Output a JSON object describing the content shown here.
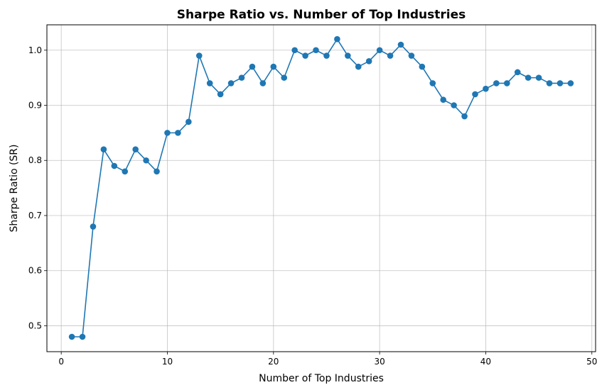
{
  "chart_data": {
    "type": "line",
    "title": "Sharpe Ratio vs. Number of Top Industries",
    "xlabel": "Number of Top Industries",
    "ylabel": "Sharpe Ratio (SR)",
    "xlim": [
      -1.35,
      50.35
    ],
    "ylim": [
      0.453,
      1.046
    ],
    "xticks": [
      0,
      10,
      20,
      30,
      40,
      50
    ],
    "yticks": [
      0.5,
      0.6,
      0.7,
      0.8,
      0.9,
      1.0
    ],
    "xtick_labels": [
      "0",
      "10",
      "20",
      "30",
      "40",
      "50"
    ],
    "ytick_labels": [
      "0.5",
      "0.6",
      "0.7",
      "0.8",
      "0.9",
      "1.0"
    ],
    "grid": true,
    "color": "#1f77b4",
    "marker": "circle",
    "x": [
      1,
      2,
      3,
      4,
      5,
      6,
      7,
      8,
      9,
      10,
      11,
      12,
      13,
      14,
      15,
      16,
      17,
      18,
      19,
      20,
      21,
      22,
      23,
      24,
      25,
      26,
      27,
      28,
      29,
      30,
      31,
      32,
      33,
      34,
      35,
      36,
      37,
      38,
      39,
      40,
      41,
      42,
      43,
      44,
      45,
      46,
      47,
      48
    ],
    "y": [
      0.48,
      0.48,
      0.68,
      0.82,
      0.79,
      0.78,
      0.82,
      0.8,
      0.78,
      0.85,
      0.85,
      0.87,
      0.99,
      0.94,
      0.92,
      0.94,
      0.95,
      0.97,
      0.94,
      0.97,
      0.95,
      1.0,
      0.99,
      1.0,
      0.99,
      1.02,
      0.99,
      0.97,
      0.98,
      1.0,
      0.99,
      1.01,
      0.99,
      0.97,
      0.94,
      0.91,
      0.9,
      0.88,
      0.92,
      0.93,
      0.94,
      0.94,
      0.96,
      0.95,
      0.95,
      0.94,
      0.94,
      0.94
    ]
  }
}
